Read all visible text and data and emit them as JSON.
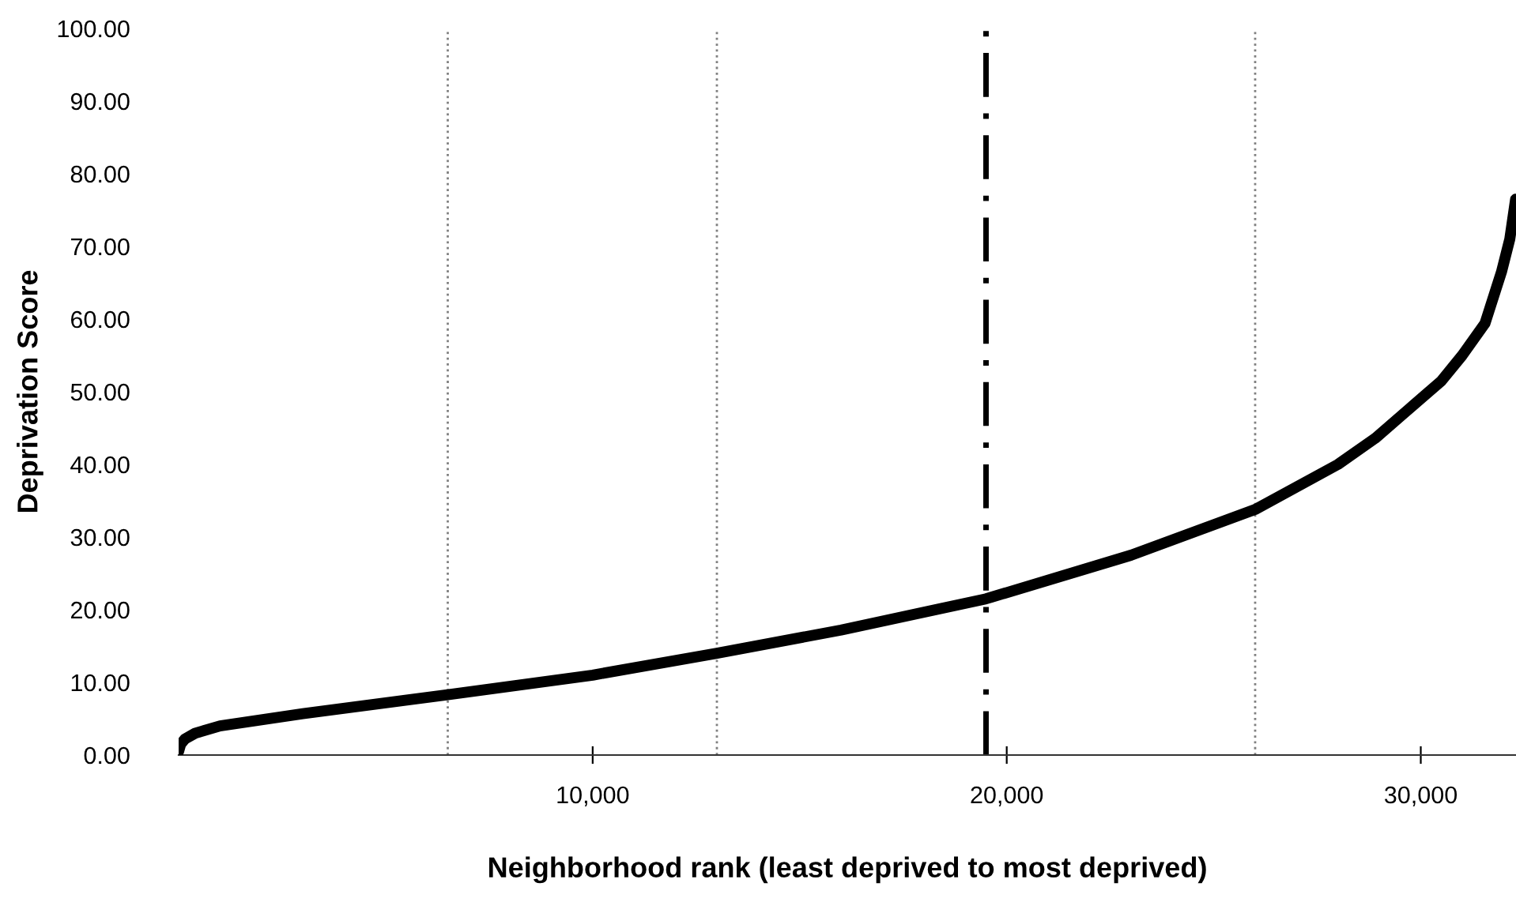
{
  "chart_data": {
    "type": "line",
    "xlabel": "Neighborhood rank (least deprived to most deprived)",
    "ylabel": "Deprivation Score",
    "series": [
      {
        "color": "#000000",
        "x": [
          0,
          50,
          150,
          400,
          1000,
          3000,
          6500,
          10000,
          13000,
          16000,
          19500,
          23000,
          26000,
          28000,
          28900,
          30500,
          31000,
          31550,
          31950,
          32150,
          32290
        ],
        "values": [
          0.5,
          1.5,
          2.2,
          3.0,
          4.0,
          5.7,
          8.3,
          11.0,
          14.0,
          17.2,
          21.5,
          27.5,
          33.8,
          40.0,
          43.6,
          51.5,
          55.0,
          59.4,
          66.5,
          71.0,
          76.5
        ]
      }
    ],
    "xlim": [
      0,
      32300
    ],
    "ylim": [
      0,
      100
    ],
    "xticks": [
      {
        "value": 10000,
        "label": "10,000"
      },
      {
        "value": 20000,
        "label": "20,000"
      },
      {
        "value": 30000,
        "label": "30,000"
      }
    ],
    "yticks": [
      {
        "value": 0,
        "label": "0.00"
      },
      {
        "value": 10,
        "label": "10.00"
      },
      {
        "value": 20,
        "label": "20.00"
      },
      {
        "value": 30,
        "label": "30.00"
      },
      {
        "value": 40,
        "label": "40.00"
      },
      {
        "value": 50,
        "label": "50.00"
      },
      {
        "value": 60,
        "label": "60.00"
      },
      {
        "value": 70,
        "label": "70.00"
      },
      {
        "value": 80,
        "label": "80.00"
      },
      {
        "value": 90,
        "label": "90.00"
      },
      {
        "value": 100,
        "label": "100.00"
      }
    ],
    "ref_lines": [
      {
        "axis": "x",
        "value": 6500,
        "color": "#808080",
        "line_style": "dotted"
      },
      {
        "axis": "x",
        "value": 13000,
        "color": "#808080",
        "line_style": "dotted"
      },
      {
        "axis": "x",
        "value": 19500,
        "color": "#000000",
        "line_style": "dashed"
      },
      {
        "axis": "x",
        "value": 26000,
        "color": "#808080",
        "line_style": "dotted"
      }
    ],
    "grid": false,
    "line_style": "solid"
  }
}
